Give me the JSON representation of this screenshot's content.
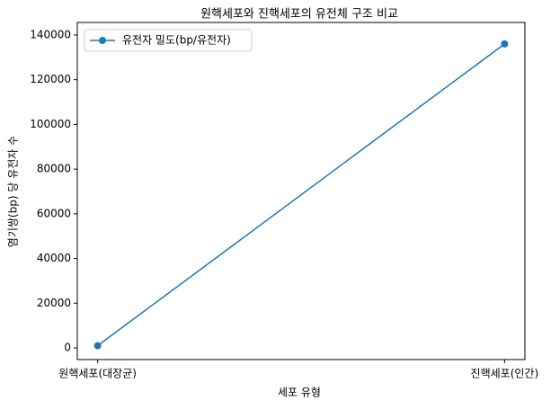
{
  "chart_data": {
    "type": "line",
    "title": "원핵세포와 진핵세포의 유전체 구조 비교",
    "x_label": "세포 유형",
    "y_label": "염기쌍(bp) 당 유전자 수",
    "categories": [
      "원핵세포(대장균)",
      "진핵세포(인간)"
    ],
    "series": [
      {
        "name": "유전자 밀도(bp/유전자)",
        "color": "#1f77b4",
        "values": [
          1000,
          136000
        ]
      }
    ],
    "ylim": [
      -5200,
      145600
    ],
    "yticks": [
      0,
      20000,
      40000,
      60000,
      80000,
      100000,
      120000,
      140000
    ],
    "legend": "upper left"
  }
}
